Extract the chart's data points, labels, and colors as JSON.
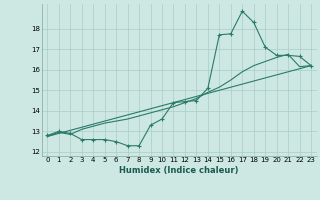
{
  "xlabel": "Humidex (Indice chaleur)",
  "xlim": [
    -0.5,
    23.5
  ],
  "ylim": [
    11.8,
    19.2
  ],
  "yticks": [
    12,
    13,
    14,
    15,
    16,
    17,
    18
  ],
  "xticks": [
    0,
    1,
    2,
    3,
    4,
    5,
    6,
    7,
    8,
    9,
    10,
    11,
    12,
    13,
    14,
    15,
    16,
    17,
    18,
    19,
    20,
    21,
    22,
    23
  ],
  "background_color": "#cde8e2",
  "line_color": "#2a7a6a",
  "grid_color": "#aaccc6",
  "line1_x": [
    0,
    1,
    2,
    3,
    4,
    5,
    6,
    7,
    8,
    9,
    10,
    11,
    12,
    13,
    14,
    15,
    16,
    17,
    18,
    19,
    20,
    21,
    22,
    23
  ],
  "line1_y": [
    12.8,
    13.0,
    12.9,
    12.6,
    12.6,
    12.6,
    12.5,
    12.3,
    12.3,
    13.3,
    13.6,
    14.4,
    14.45,
    14.5,
    15.1,
    17.7,
    17.75,
    18.85,
    18.3,
    17.1,
    16.7,
    16.7,
    16.65,
    16.2
  ],
  "line2_x": [
    0,
    1,
    2,
    3,
    4,
    5,
    6,
    7,
    8,
    9,
    10,
    11,
    12,
    13,
    14,
    15,
    16,
    17,
    18,
    19,
    20,
    21,
    22,
    23
  ],
  "line2_y": [
    12.75,
    12.95,
    12.85,
    13.1,
    13.25,
    13.4,
    13.5,
    13.6,
    13.75,
    13.9,
    14.05,
    14.2,
    14.4,
    14.6,
    14.9,
    15.15,
    15.5,
    15.9,
    16.2,
    16.4,
    16.6,
    16.75,
    16.15,
    16.2
  ],
  "line3_x": [
    0,
    23
  ],
  "line3_y": [
    12.75,
    16.2
  ]
}
